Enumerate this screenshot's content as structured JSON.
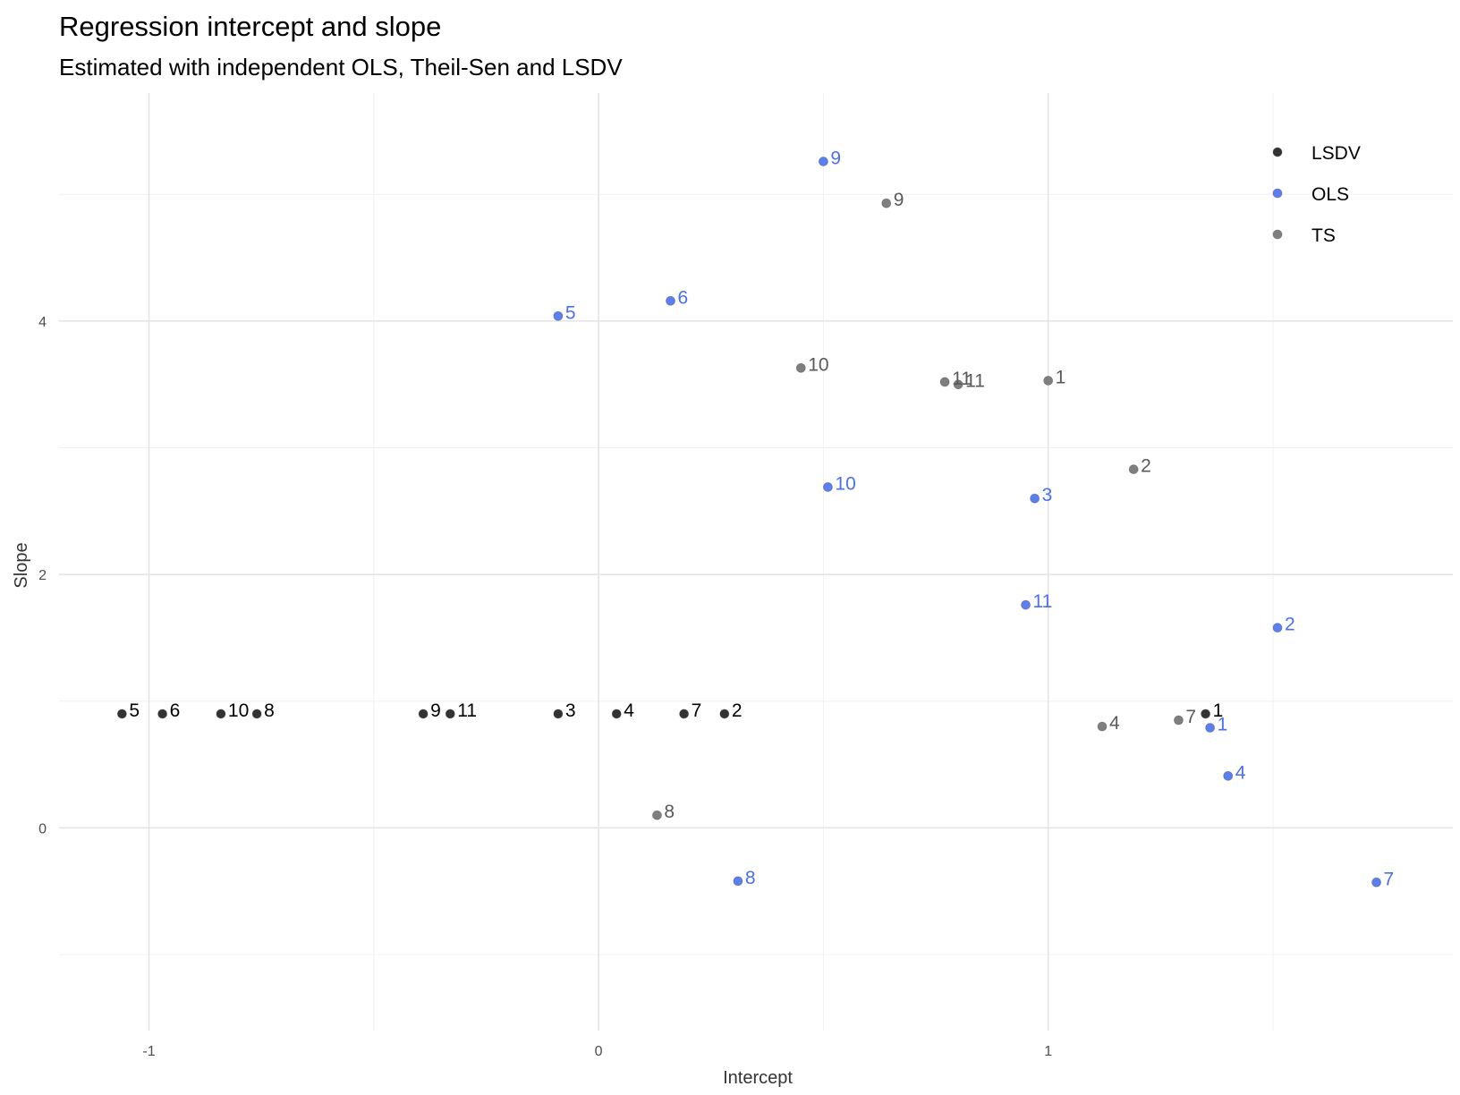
{
  "chart_data": {
    "type": "scatter",
    "title": "Regression intercept and slope",
    "subtitle": "Estimated with independent OLS, Theil-Sen and LSDV",
    "xlabel": "Intercept",
    "ylabel": "Slope",
    "xlim": [
      -1.2,
      1.9
    ],
    "ylim": [
      -1.6,
      5.8
    ],
    "x_ticks": [
      -1,
      0,
      1
    ],
    "y_ticks": [
      0,
      2,
      4
    ],
    "x_minor_ticks": [
      -0.5,
      0.5,
      1.5
    ],
    "y_minor_ticks": [
      -1,
      1,
      3,
      5
    ],
    "grid": true,
    "legend_position": "top-right",
    "series": [
      {
        "name": "LSDV",
        "color": "#333333",
        "label_color": "#000000",
        "points": [
          {
            "label": "5",
            "x": -1.06,
            "y": 0.9
          },
          {
            "label": "6",
            "x": -0.97,
            "y": 0.9
          },
          {
            "label": "10",
            "x": -0.84,
            "y": 0.9
          },
          {
            "label": "8",
            "x": -0.76,
            "y": 0.9
          },
          {
            "label": "9",
            "x": -0.39,
            "y": 0.9
          },
          {
            "label": "11",
            "x": -0.33,
            "y": 0.9
          },
          {
            "label": "3",
            "x": -0.09,
            "y": 0.9
          },
          {
            "label": "4",
            "x": 0.04,
            "y": 0.9
          },
          {
            "label": "7",
            "x": 0.19,
            "y": 0.9
          },
          {
            "label": "2",
            "x": 0.28,
            "y": 0.9
          },
          {
            "label": "1",
            "x": 1.35,
            "y": 0.9
          }
        ]
      },
      {
        "name": "OLS",
        "color": "#5b7ff0",
        "label_color": "#4a6ff0",
        "points": [
          {
            "label": "9",
            "x": 0.5,
            "y": 5.26
          },
          {
            "label": "5",
            "x": -0.09,
            "y": 4.04
          },
          {
            "label": "6",
            "x": 0.16,
            "y": 4.16
          },
          {
            "label": "10",
            "x": 0.51,
            "y": 2.69
          },
          {
            "label": "3",
            "x": 0.97,
            "y": 2.6
          },
          {
            "label": "11",
            "x": 0.95,
            "y": 1.76
          },
          {
            "label": "2",
            "x": 1.51,
            "y": 1.58
          },
          {
            "label": "1",
            "x": 1.36,
            "y": 0.79
          },
          {
            "label": "4",
            "x": 1.4,
            "y": 0.41
          },
          {
            "label": "8",
            "x": 0.31,
            "y": -0.42
          },
          {
            "label": "7",
            "x": 1.73,
            "y": -0.43
          }
        ]
      },
      {
        "name": "TS",
        "color": "#7f7f7f",
        "label_color": "#595959",
        "points": [
          {
            "label": "9",
            "x": 0.64,
            "y": 4.93
          },
          {
            "label": "10",
            "x": 0.45,
            "y": 3.63
          },
          {
            "label": "11",
            "x": 0.77,
            "y": 3.52
          },
          {
            "label": "11",
            "x": 0.8,
            "y": 3.5
          },
          {
            "label": "1",
            "x": 1.0,
            "y": 3.53
          },
          {
            "label": "2",
            "x": 1.19,
            "y": 2.83
          },
          {
            "label": "4",
            "x": 1.12,
            "y": 0.8
          },
          {
            "label": "7",
            "x": 1.29,
            "y": 0.85
          },
          {
            "label": "8",
            "x": 0.13,
            "y": 0.1
          }
        ]
      }
    ]
  }
}
